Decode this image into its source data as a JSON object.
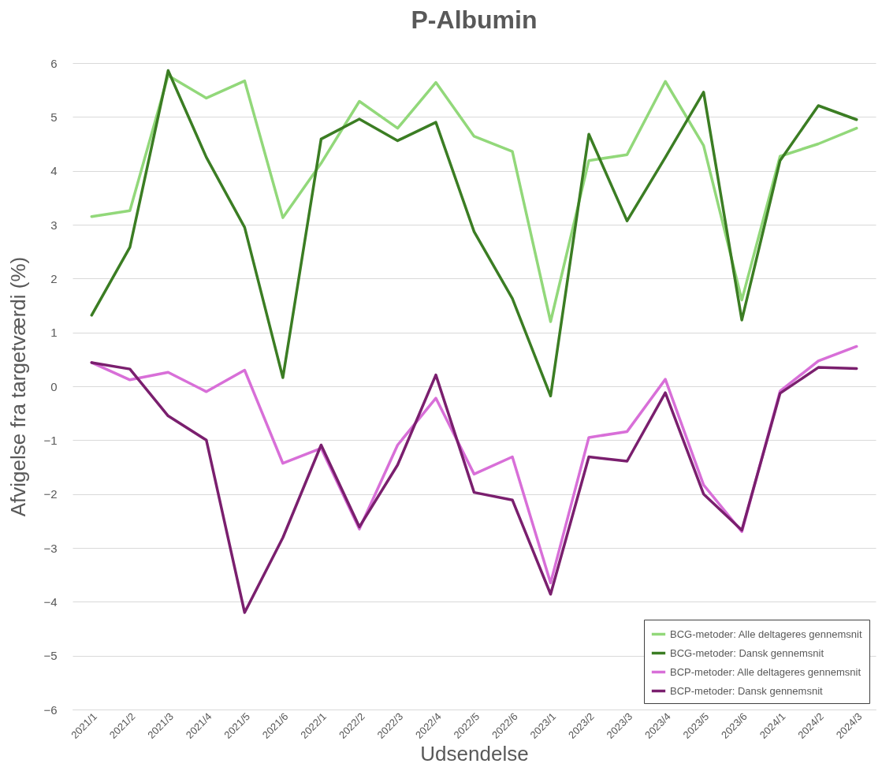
{
  "chart_data": {
    "type": "line",
    "title": "P-Albumin",
    "xlabel": "Udsendelse",
    "ylabel": "Afvigelse fra targetværdi (%)",
    "categories": [
      "2021/1",
      "2021/2",
      "2021/3",
      "2021/4",
      "2021/5",
      "2021/6",
      "2022/1",
      "2022/2",
      "2022/3",
      "2022/4",
      "2022/5",
      "2022/6",
      "2023/1",
      "2023/2",
      "2023/3",
      "2023/4",
      "2023/5",
      "2023/6",
      "2024/1",
      "2024/2",
      "2024/3"
    ],
    "series": [
      {
        "name": "BCG-metoder: Alle deltageres gennemsnit",
        "color": "#92d87a",
        "values": [
          3.15,
          3.26,
          5.77,
          5.35,
          5.67,
          3.13,
          4.14,
          5.29,
          4.79,
          5.64,
          4.64,
          4.36,
          1.2,
          4.19,
          4.3,
          5.66,
          4.47,
          1.6,
          4.27,
          4.5,
          4.79
        ]
      },
      {
        "name": "BCG-metoder: Dansk gennemsnit",
        "color": "#3b7d23",
        "values": [
          1.32,
          2.58,
          5.86,
          4.25,
          2.95,
          0.16,
          4.59,
          4.96,
          4.56,
          4.9,
          2.87,
          1.63,
          -0.18,
          4.68,
          3.07,
          4.25,
          5.46,
          1.23,
          4.19,
          5.21,
          4.95
        ]
      },
      {
        "name": "BCP-metoder: Alle deltageres gennemsnit",
        "color": "#d86fd8",
        "values": [
          0.44,
          0.12,
          0.26,
          -0.1,
          0.3,
          -1.43,
          -1.15,
          -2.65,
          -1.09,
          -0.22,
          -1.63,
          -1.31,
          -3.65,
          -0.95,
          -0.84,
          0.13,
          -1.83,
          -2.7,
          -0.09,
          0.47,
          0.74
        ]
      },
      {
        "name": "BCP-metoder: Dansk gennemsnit",
        "color": "#7a1f6e",
        "values": [
          0.44,
          0.32,
          -0.55,
          -1.0,
          -4.2,
          -2.81,
          -1.09,
          -2.61,
          -1.46,
          0.21,
          -1.97,
          -2.11,
          -3.86,
          -1.31,
          -1.39,
          -0.12,
          -2.0,
          -2.67,
          -0.13,
          0.35,
          0.33
        ]
      }
    ],
    "ylim": [
      -6,
      6
    ],
    "yticks": [
      -6,
      -5,
      -4,
      -3,
      -2,
      -1,
      0,
      1,
      2,
      3,
      4,
      5,
      6
    ],
    "grid": "y",
    "legend": "bottom right",
    "marker": "none",
    "line_style": "solid"
  }
}
